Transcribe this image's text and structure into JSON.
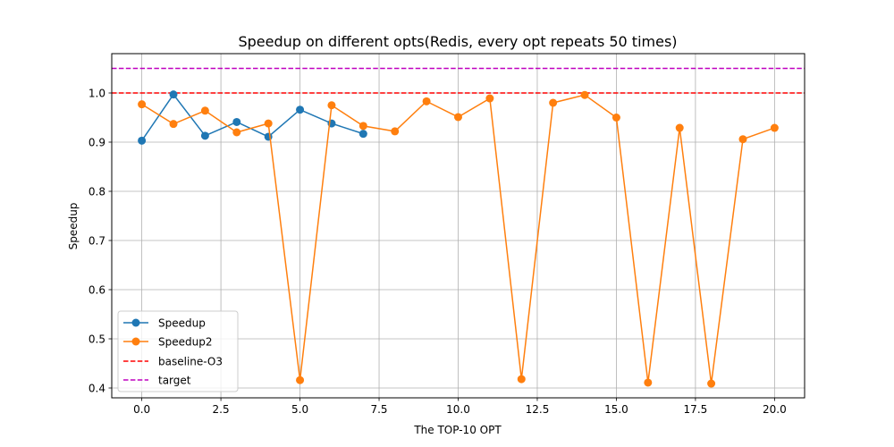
{
  "chart_data": {
    "type": "line",
    "title": "Speedup on different opts(Redis, every opt repeats 50 times)",
    "xlabel": "The TOP-10 OPT",
    "ylabel": "Speedup",
    "xlim": [
      -0.95,
      20.95
    ],
    "ylim": [
      0.38,
      1.08
    ],
    "x_ticks": [
      0.0,
      2.5,
      5.0,
      7.5,
      10.0,
      12.5,
      15.0,
      17.5,
      20.0
    ],
    "x_tick_labels": [
      "0.0",
      "2.5",
      "5.0",
      "7.5",
      "10.0",
      "12.5",
      "15.0",
      "17.5",
      "20.0"
    ],
    "y_ticks": [
      0.4,
      0.5,
      0.6,
      0.7,
      0.8,
      0.9,
      1.0
    ],
    "y_tick_labels": [
      "0.4",
      "0.5",
      "0.6",
      "0.7",
      "0.8",
      "0.9",
      "1.0"
    ],
    "grid": true,
    "legend_position": "lower-left",
    "series": [
      {
        "name": "Speedup",
        "color": "#1f77b4",
        "x": [
          0,
          1,
          2,
          3,
          4,
          5,
          6,
          7
        ],
        "y": [
          0.903,
          0.997,
          0.913,
          0.941,
          0.911,
          0.966,
          0.938,
          0.917
        ]
      },
      {
        "name": "Speedup2",
        "color": "#ff7f0e",
        "x": [
          0,
          1,
          2,
          3,
          4,
          5,
          6,
          7,
          8,
          9,
          10,
          11,
          12,
          13,
          14,
          15,
          16,
          17,
          18,
          19,
          20
        ],
        "y": [
          0.977,
          0.937,
          0.964,
          0.92,
          0.938,
          0.416,
          0.975,
          0.933,
          0.922,
          0.983,
          0.951,
          0.989,
          0.418,
          0.98,
          0.996,
          0.95,
          0.411,
          0.929,
          0.409,
          0.906,
          0.929
        ]
      }
    ],
    "reference_lines": [
      {
        "name": "baseline-O3",
        "y": 1.0,
        "color": "#ff0000",
        "style": "dashed"
      },
      {
        "name": "target",
        "y": 1.05,
        "color": "#bf00bf",
        "style": "dashed"
      }
    ]
  }
}
